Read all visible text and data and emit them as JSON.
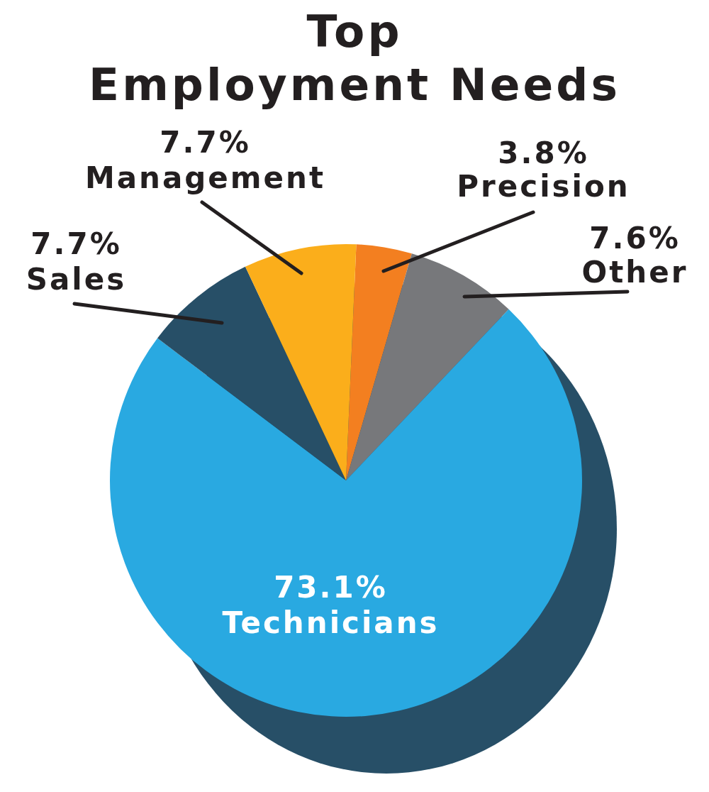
{
  "chart_data": {
    "type": "pie",
    "title": "Top\nEmployment Needs",
    "categories": [
      "Precision",
      "Other",
      "Technicians",
      "Sales",
      "Management"
    ],
    "values": [
      3.8,
      7.6,
      73.1,
      7.7,
      7.7
    ],
    "value_labels": [
      "3.8%",
      "7.6%",
      "73.1%",
      "7.7%",
      "7.7%"
    ],
    "colors": [
      "#f37f20",
      "#77787b",
      "#29a9e1",
      "#274f67",
      "#fbae1b"
    ]
  }
}
